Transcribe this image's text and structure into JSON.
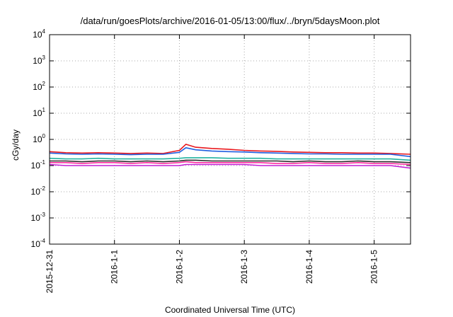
{
  "chart_data": {
    "type": "line",
    "title": "/data/run/goesPlots/archive/2016-01-05/13:00/flux/../bryn/5daysMoon.plot",
    "xlabel": "Coordinated Universal Time (UTC)",
    "ylabel": "cGy/day",
    "y_scale": "log",
    "ylim": [
      0.0001,
      10000
    ],
    "xlim": [
      0,
      5.56
    ],
    "grid": true,
    "legend": "none",
    "x_tick_labels": [
      "2015-12-31",
      "2016-1-1",
      "2016-1-2",
      "2016-1-3",
      "2016-1-4",
      "2016-1-5"
    ],
    "x_tick_values": [
      0,
      1,
      2,
      3,
      4,
      5
    ],
    "y_ticks": [
      {
        "base": "10",
        "exp": "-4",
        "value": 0.0001
      },
      {
        "base": "10",
        "exp": "-3",
        "value": 0.001
      },
      {
        "base": "10",
        "exp": "-2",
        "value": 0.01
      },
      {
        "base": "10",
        "exp": "-1",
        "value": 0.1
      },
      {
        "base": "10",
        "exp": "0",
        "value": 1
      },
      {
        "base": "10",
        "exp": "1",
        "value": 10
      },
      {
        "base": "10",
        "exp": "2",
        "value": 100
      },
      {
        "base": "10",
        "exp": "3",
        "value": 1000
      },
      {
        "base": "10",
        "exp": "4",
        "value": 10000
      }
    ],
    "x": [
      0,
      0.25,
      0.5,
      0.75,
      1,
      1.25,
      1.5,
      1.75,
      2,
      2.1,
      2.25,
      2.5,
      2.75,
      3,
      3.25,
      3.5,
      3.75,
      4,
      4.25,
      4.5,
      4.75,
      5,
      5.25,
      5.56
    ],
    "series": [
      {
        "color": "#e8191f",
        "values": [
          0.34,
          0.31,
          0.3,
          0.31,
          0.3,
          0.29,
          0.3,
          0.29,
          0.38,
          0.65,
          0.5,
          0.45,
          0.42,
          0.38,
          0.36,
          0.35,
          0.33,
          0.32,
          0.31,
          0.31,
          0.3,
          0.3,
          0.29,
          0.27
        ]
      },
      {
        "color": "#1f5fe0",
        "values": [
          0.3,
          0.28,
          0.27,
          0.28,
          0.27,
          0.26,
          0.27,
          0.27,
          0.32,
          0.48,
          0.4,
          0.36,
          0.34,
          0.33,
          0.31,
          0.3,
          0.29,
          0.28,
          0.28,
          0.27,
          0.27,
          0.27,
          0.27,
          0.22
        ]
      },
      {
        "color": "#22b3a0",
        "values": [
          0.19,
          0.18,
          0.18,
          0.19,
          0.18,
          0.18,
          0.18,
          0.18,
          0.19,
          0.2,
          0.2,
          0.2,
          0.19,
          0.19,
          0.19,
          0.18,
          0.18,
          0.18,
          0.18,
          0.18,
          0.18,
          0.18,
          0.18,
          0.16
        ]
      },
      {
        "color": "#2b2b2b",
        "values": [
          0.15,
          0.15,
          0.14,
          0.15,
          0.15,
          0.14,
          0.15,
          0.14,
          0.15,
          0.16,
          0.16,
          0.15,
          0.15,
          0.15,
          0.15,
          0.15,
          0.14,
          0.15,
          0.14,
          0.14,
          0.15,
          0.14,
          0.14,
          0.13
        ]
      },
      {
        "color": "#ff2da0",
        "values": [
          0.13,
          0.13,
          0.12,
          0.13,
          0.13,
          0.12,
          0.13,
          0.12,
          0.13,
          0.14,
          0.13,
          0.13,
          0.13,
          0.13,
          0.13,
          0.12,
          0.12,
          0.13,
          0.12,
          0.12,
          0.13,
          0.12,
          0.12,
          0.11
        ]
      },
      {
        "color": "#c21fd6",
        "values": [
          0.11,
          0.1,
          0.1,
          0.1,
          0.1,
          0.1,
          0.1,
          0.1,
          0.1,
          0.11,
          0.11,
          0.11,
          0.11,
          0.11,
          0.1,
          0.1,
          0.1,
          0.1,
          0.1,
          0.1,
          0.1,
          0.1,
          0.1,
          0.08
        ]
      }
    ]
  }
}
